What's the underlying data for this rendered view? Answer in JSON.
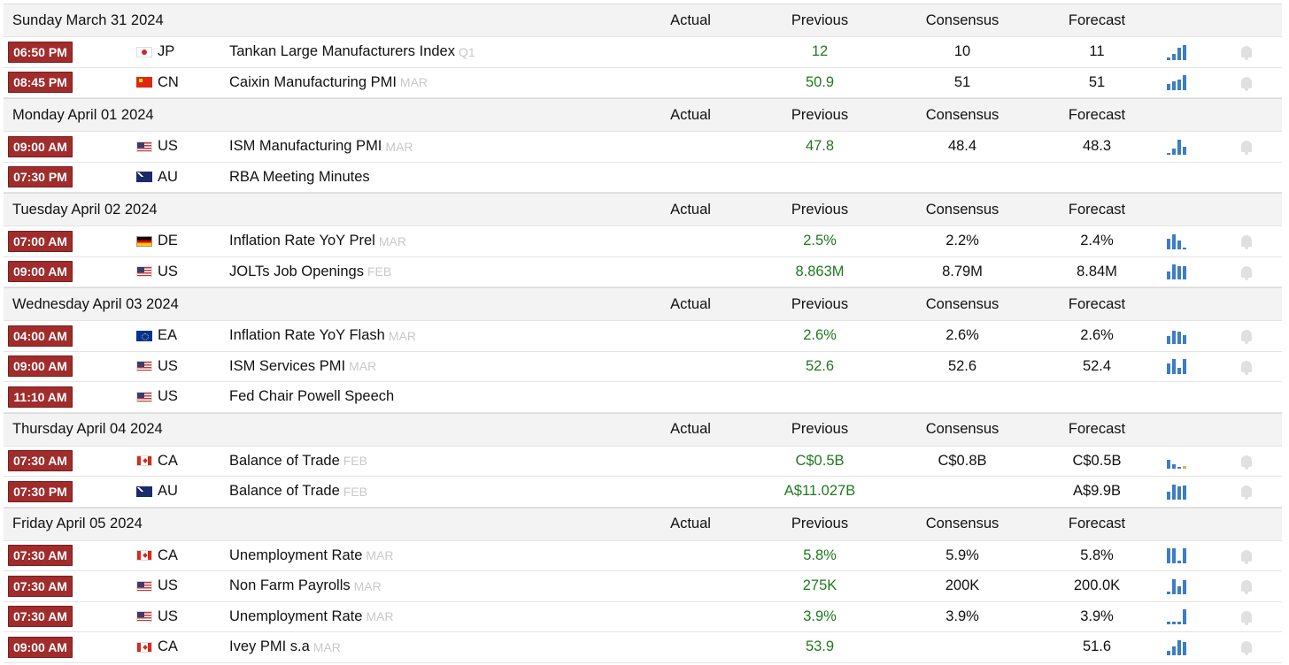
{
  "header_labels": {
    "actual": "Actual",
    "previous": "Previous",
    "consensus": "Consensus",
    "forecast": "Forecast"
  },
  "days": [
    {
      "date": "Sunday March 31 2024",
      "events": [
        {
          "time": "06:50 PM",
          "country": "JP",
          "flag_icon": "japan-flag",
          "event": "Tankan Large Manufacturers Index",
          "ref": "Q1",
          "previous": "12",
          "consensus": "10",
          "forecast": "11",
          "trend": [
            0.2,
            0.4,
            0.8,
            1.0
          ],
          "alert": true
        },
        {
          "time": "08:45 PM",
          "country": "CN",
          "flag_icon": "china-flag",
          "event": "Caixin Manufacturing PMI",
          "ref": "MAR",
          "previous": "50.9",
          "consensus": "51",
          "forecast": "51",
          "trend": [
            0.4,
            0.6,
            0.7,
            1.0
          ],
          "alert": true
        }
      ]
    },
    {
      "date": "Monday April 01 2024",
      "events": [
        {
          "time": "09:00 AM",
          "country": "US",
          "flag_icon": "usa-flag",
          "event": "ISM Manufacturing PMI",
          "ref": "MAR",
          "previous": "47.8",
          "consensus": "48.4",
          "forecast": "48.3",
          "trend": [
            0.1,
            0.4,
            1.0,
            0.5
          ],
          "alert": true
        },
        {
          "time": "07:30 PM",
          "country": "AU",
          "flag_icon": "australia-flag",
          "event": "RBA Meeting Minutes",
          "ref": "",
          "previous": "",
          "consensus": "",
          "forecast": "",
          "trend": [],
          "alert": false
        }
      ]
    },
    {
      "date": "Tuesday April 02 2024",
      "events": [
        {
          "time": "07:00 AM",
          "country": "DE",
          "flag_icon": "germany-flag",
          "event": "Inflation Rate YoY Prel",
          "ref": "MAR",
          "previous": "2.5%",
          "consensus": "2.2%",
          "forecast": "2.4%",
          "trend": [
            0.7,
            1.0,
            0.6,
            0.1
          ],
          "alert": true
        },
        {
          "time": "09:00 AM",
          "country": "US",
          "flag_icon": "usa-flag",
          "event": "JOLTs Job Openings",
          "ref": "FEB",
          "previous": "8.863M",
          "consensus": "8.79M",
          "forecast": "8.84M",
          "trend": [
            0.5,
            1.0,
            0.9,
            0.9
          ],
          "alert": true
        }
      ]
    },
    {
      "date": "Wednesday April 03 2024",
      "events": [
        {
          "time": "04:00 AM",
          "country": "EA",
          "flag_icon": "euro-area-flag",
          "event": "Inflation Rate YoY Flash",
          "ref": "MAR",
          "previous": "2.6%",
          "consensus": "2.6%",
          "forecast": "2.6%",
          "trend": [
            0.5,
            0.9,
            0.8,
            0.6
          ],
          "alert": true
        },
        {
          "time": "09:00 AM",
          "country": "US",
          "flag_icon": "usa-flag",
          "event": "ISM Services PMI",
          "ref": "MAR",
          "previous": "52.6",
          "consensus": "52.6",
          "forecast": "52.4",
          "trend": [
            0.7,
            1.0,
            0.4,
            1.0
          ],
          "alert": true
        },
        {
          "time": "11:10 AM",
          "country": "US",
          "flag_icon": "usa-flag",
          "event": "Fed Chair Powell Speech",
          "ref": "",
          "previous": "",
          "consensus": "",
          "forecast": "",
          "trend": [],
          "alert": false
        }
      ]
    },
    {
      "date": "Thursday April 04 2024",
      "events": [
        {
          "time": "07:30 AM",
          "country": "CA",
          "flag_icon": "canada-flag",
          "event": "Balance of Trade",
          "ref": "FEB",
          "previous": "C$0.5B",
          "consensus": "C$0.8B",
          "forecast": "C$0.5B",
          "trend": [
            0.6,
            0.3,
            0.1,
            0.15
          ],
          "trend_negative_last": true,
          "alert": true
        },
        {
          "time": "07:30 PM",
          "country": "AU",
          "flag_icon": "australia-flag",
          "event": "Balance of Trade",
          "ref": "FEB",
          "previous": "A$11.027B",
          "consensus": "",
          "forecast": "A$9.9B",
          "trend": [
            0.5,
            1.0,
            0.9,
            0.95
          ],
          "alert": true
        }
      ]
    },
    {
      "date": "Friday April 05 2024",
      "events": [
        {
          "time": "07:30 AM",
          "country": "CA",
          "flag_icon": "canada-flag",
          "event": "Unemployment Rate",
          "ref": "MAR",
          "previous": "5.8%",
          "consensus": "5.9%",
          "forecast": "5.8%",
          "trend": [
            1.0,
            1.0,
            0.2,
            1.0
          ],
          "alert": true
        },
        {
          "time": "07:30 AM",
          "country": "US",
          "flag_icon": "usa-flag",
          "event": "Non Farm Payrolls",
          "ref": "MAR",
          "previous": "275K",
          "consensus": "200K",
          "forecast": "200.0K",
          "trend": [
            0.2,
            1.0,
            0.5,
            0.95
          ],
          "alert": true
        },
        {
          "time": "07:30 AM",
          "country": "US",
          "flag_icon": "usa-flag",
          "event": "Unemployment Rate",
          "ref": "MAR",
          "previous": "3.9%",
          "consensus": "3.9%",
          "forecast": "3.9%",
          "trend": [
            0.15,
            0.15,
            0.15,
            1.0
          ],
          "alert": true
        },
        {
          "time": "09:00 AM",
          "country": "CA",
          "flag_icon": "canada-flag",
          "event": "Ivey PMI s.a",
          "ref": "MAR",
          "previous": "53.9",
          "consensus": "",
          "forecast": "51.6",
          "trend": [
            0.3,
            0.6,
            1.0,
            0.9
          ],
          "alert": true
        }
      ]
    }
  ]
}
